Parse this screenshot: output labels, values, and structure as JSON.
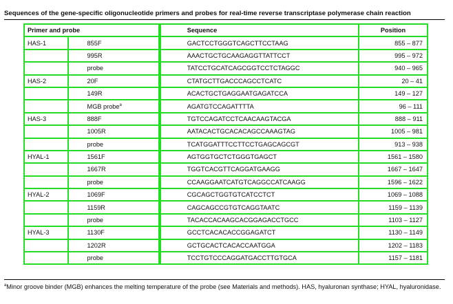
{
  "caption": "Sequences of the gene-specific oligonucleotide primers and probes for real-time reverse transcriptase polymerase chain reaction",
  "headers": {
    "primer": "Primer and probe",
    "sequence": "Sequence",
    "position": "Position"
  },
  "rows": [
    {
      "gene": "HAS-1",
      "primer": "855F",
      "sup": "",
      "sequence": "GACTCCTGGGTCAGCTTCCTAAG",
      "position": "855 – 877"
    },
    {
      "gene": "",
      "primer": "995R",
      "sup": "",
      "sequence": "AAACTGCTGCAAGAGGTTATTCCT",
      "position": "995 – 972"
    },
    {
      "gene": "",
      "primer": "probe",
      "sup": "",
      "sequence": "TATCCTGCATCAGCGGTCCTCTAGGC",
      "position": "940 – 965"
    },
    {
      "gene": "HAS-2",
      "primer": "20F",
      "sup": "",
      "sequence": "CTATGCTTGACCCAGCCTCATC",
      "position": "20 – 41"
    },
    {
      "gene": "",
      "primer": "149R",
      "sup": "",
      "sequence": "ACACTGCTGAGGAATGAGATCCA",
      "position": "149 – 127"
    },
    {
      "gene": "",
      "primer": "MGB probe",
      "sup": "a",
      "sequence": "AGATGTCCAGATTTTA",
      "position": "96 – 111"
    },
    {
      "gene": "HAS-3",
      "primer": "888F",
      "sup": "",
      "sequence": "TGTCCAGATCCTCAACAAGTACGA",
      "position": "888 – 911"
    },
    {
      "gene": "",
      "primer": "1005R",
      "sup": "",
      "sequence": "AATACACTGCACACAGCCAAAGTAG",
      "position": "1005 – 981"
    },
    {
      "gene": "",
      "primer": "probe",
      "sup": "",
      "sequence": "TCATGGATTTCCTTCCTGAGCAGCGT",
      "position": "913 – 938"
    },
    {
      "gene": "HYAL-1",
      "primer": "1561F",
      "sup": "",
      "sequence": "AGTGGTGCTCTGGGTGAGCT",
      "position": "1561 – 1580"
    },
    {
      "gene": "",
      "primer": "1667R",
      "sup": "",
      "sequence": "TGGTCACGTTCAGGATGAAGG",
      "position": "1667 – 1647"
    },
    {
      "gene": "",
      "primer": "probe",
      "sup": "",
      "sequence": "CCAAGGAATCATGTCAGGCCATCAAGG",
      "position": "1596 – 1622"
    },
    {
      "gene": "HYAL-2",
      "primer": "1069F",
      "sup": "",
      "sequence": "CGCAGCTGGTGTCATCCTCT",
      "position": "1069 – 1088"
    },
    {
      "gene": "",
      "primer": "1159R",
      "sup": "",
      "sequence": "CAGCAGCCGTGTCAGGTAATC",
      "position": "1159 – 1139"
    },
    {
      "gene": "",
      "primer": "probe",
      "sup": "",
      "sequence": "TACACCACAAGCACGGAGACCTGCC",
      "position": "1103 – 1127"
    },
    {
      "gene": "HYAL-3",
      "primer": "1130F",
      "sup": "",
      "sequence": "GCCTCACACACCGGAGATCT",
      "position": "1130 – 1149"
    },
    {
      "gene": "",
      "primer": "1202R",
      "sup": "",
      "sequence": "GCTGCACTCACACCAATGGA",
      "position": "1202 – 1183"
    },
    {
      "gene": "",
      "primer": "probe",
      "sup": "",
      "sequence": "TCCTGTCCCAGGATGACCTTGTGCA",
      "position": "1157 – 1181"
    }
  ],
  "footnote": {
    "mark": "a",
    "text": "Minor groove binder (MGB) enhances the melting temperature of the probe (see Materials and methods). HAS, hyaluronan synthase; HYAL, hyaluronidase."
  }
}
